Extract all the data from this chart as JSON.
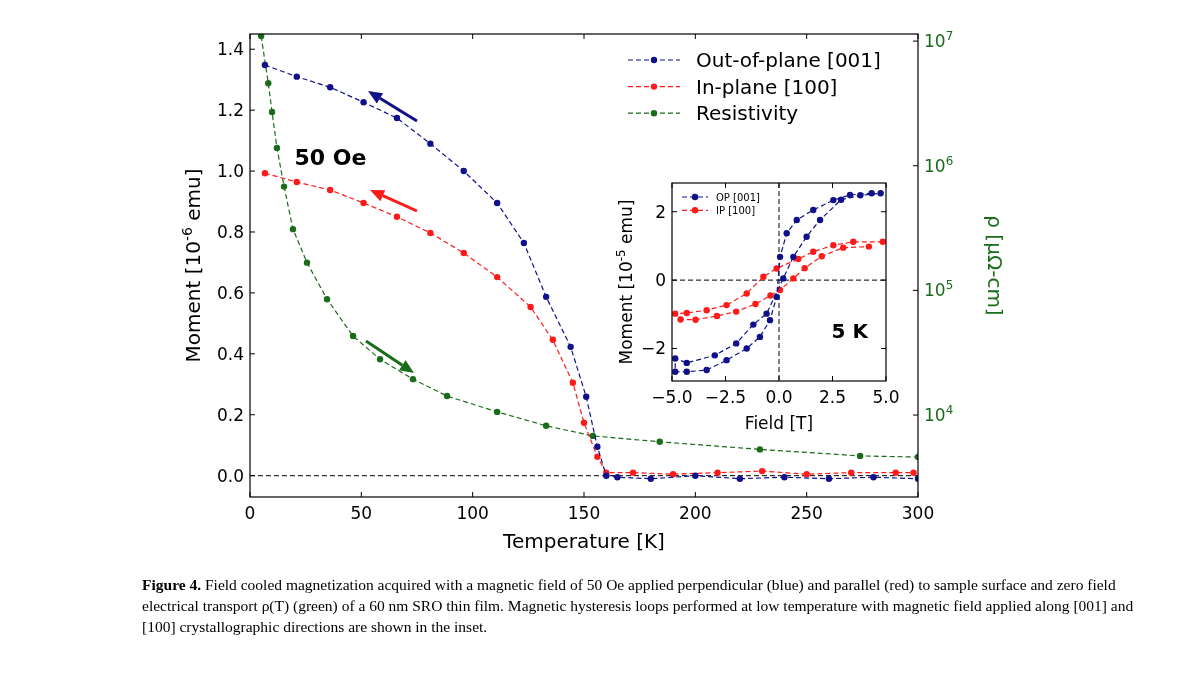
{
  "chart_data": [
    {
      "type": "line",
      "xlabel": "Temperature [K]",
      "ylabel": "Moment [10$^{-6}$ emu]",
      "y2label": "ρ [μΩ-cm]",
      "xlim": [
        0,
        300
      ],
      "xticks": [
        0,
        50,
        100,
        150,
        200,
        250,
        300
      ],
      "ylim": [
        -0.07,
        1.45
      ],
      "yticks": [
        {
          "value": 0,
          "label": "0.0"
        },
        0.2,
        0.4,
        0.6,
        0.8,
        {
          "value": 1,
          "label": "1.0"
        },
        1.2,
        1.4
      ],
      "y2lim": [
        2200,
        11400000
      ],
      "y2ticks": [
        {
          "value": 10000,
          "label": "10$^{4}$"
        },
        {
          "value": 100000,
          "label": "10$^{5}$"
        },
        {
          "value": 1000000,
          "label": "10$^{6}$"
        },
        {
          "value": 10000000,
          "label": "10$^{7}$"
        }
      ],
      "log": "y2",
      "marker": "circle",
      "line_style": "dashed",
      "legend": "top right",
      "grid": false,
      "ref_lines": [
        {
          "axis": "y",
          "value": 0,
          "line_style": "dashed"
        }
      ],
      "annotations": [
        "50 Oe",
        "Figure 4.",
        "Field cooled magnetization acquired with a magnetic field of 50 Oe applied perpendicular (blue) and parallel (red) to sample surface and zero field electrical transport ρ(T) (green) of a 60 nm SRO thin film. Magnetic hysteresis loops performed at low temperature with magnetic field applied along [001] and [100] crystallographic directions are shown in the inset."
      ],
      "series": [
        {
          "name": "Out-of-plane [001]",
          "color": "#10108a",
          "x": [
            6.7,
            21,
            36,
            51,
            66,
            81,
            96,
            111,
            123,
            133,
            144,
            151,
            156,
            160,
            165,
            180,
            200,
            220,
            240,
            260,
            280,
            300
          ],
          "values": [
            1.348,
            1.31,
            1.275,
            1.226,
            1.174,
            1.09,
            1.0,
            0.895,
            0.764,
            0.587,
            0.423,
            0.259,
            0.095,
            0.0,
            -0.005,
            -0.01,
            0.0,
            -0.01,
            -0.005,
            -0.01,
            -0.005,
            -0.01
          ]
        },
        {
          "name": "In-plane [100]",
          "color": "#ff1a1a",
          "x": [
            6.7,
            21,
            36,
            51,
            66,
            81,
            96,
            111,
            126,
            136,
            145,
            150,
            156,
            160,
            172,
            190,
            210,
            230,
            250,
            270,
            290,
            298
          ],
          "values": [
            0.993,
            0.964,
            0.938,
            0.895,
            0.85,
            0.797,
            0.731,
            0.652,
            0.554,
            0.446,
            0.305,
            0.174,
            0.062,
            0.01,
            0.01,
            0.005,
            0.01,
            0.015,
            0.005,
            0.01,
            0.01,
            0.01
          ]
        },
        {
          "name": "Resistivity",
          "color": "#1a6b1a",
          "axis": "y2",
          "x": [
            5,
            8.2,
            9.9,
            12.1,
            15.3,
            19.3,
            25.6,
            34.6,
            46.3,
            58.4,
            73.2,
            88.5,
            111,
            133,
            154,
            184,
            229,
            274,
            300
          ],
          "values": [
            11000000,
            4600000,
            2700000,
            1390000,
            680000,
            310000,
            167000,
            85000,
            43000,
            28000,
            19400,
            14200,
            10600,
            8200,
            6800,
            6100,
            5300,
            4700,
            4600
          ]
        }
      ]
    },
    {
      "type": "line",
      "xlabel": "Field [T]",
      "ylabel": "Moment [10$^{-5}$ emu]",
      "xlim": [
        -5,
        5
      ],
      "xticks": [
        {
          "value": -5,
          "label": "−5.0"
        },
        -2.5,
        {
          "value": 0,
          "label": "0.0"
        },
        2.5,
        {
          "value": 5,
          "label": "5.0"
        }
      ],
      "ylim": [
        -2.95,
        2.84
      ],
      "yticks": [
        -2,
        0,
        2
      ],
      "marker": "circle",
      "line_style": "dashed",
      "legend": "top left",
      "grid": false,
      "ref_lines": [
        {
          "axis": "y",
          "value": 0,
          "line_style": "dashed"
        },
        {
          "axis": "x",
          "value": 0,
          "line_style": "dashed"
        }
      ],
      "annotations": [
        "5 K"
      ],
      "series": [
        {
          "name": "OP [001]",
          "color": "#10108a",
          "x": [
            4.33,
            3.32,
            2.54,
            1.6,
            0.83,
            0.36,
            0.05,
            -0.11,
            -0.42,
            -0.89,
            -1.51,
            -2.45,
            -3.38,
            -4.31,
            -4.85,
            -4.85,
            -4.31,
            -3.0,
            -2.0,
            -1.2,
            -0.58,
            0.2,
            0.67,
            1.29,
            1.92,
            2.9,
            3.8,
            4.75
          ],
          "values": [
            2.54,
            2.49,
            2.34,
            2.05,
            1.76,
            1.37,
            0.68,
            -0.49,
            -1.17,
            -1.66,
            -2.0,
            -2.34,
            -2.63,
            -2.68,
            -2.68,
            -2.29,
            -2.42,
            -2.2,
            -1.85,
            -1.3,
            -0.98,
            0.05,
            0.68,
            1.27,
            1.76,
            2.35,
            2.48,
            2.54
          ]
        },
        {
          "name": "IP [100]",
          "color": "#ff1a1a",
          "x": [
            4.85,
            3.47,
            2.54,
            1.6,
            0.9,
            -0.11,
            -0.73,
            -1.51,
            -2.45,
            -3.38,
            -4.31,
            -4.85,
            -4.6,
            -3.9,
            -2.9,
            -2.0,
            -1.1,
            -0.4,
            0.05,
            0.67,
            1.2,
            2.0,
            3.0,
            4.2
          ],
          "values": [
            1.12,
            1.12,
            1.02,
            0.83,
            0.62,
            0.34,
            0.1,
            -0.39,
            -0.73,
            -0.88,
            -0.96,
            -0.98,
            -1.15,
            -1.16,
            -1.05,
            -0.92,
            -0.7,
            -0.45,
            -0.29,
            0.05,
            0.35,
            0.7,
            0.95,
            0.98
          ]
        }
      ]
    }
  ]
}
